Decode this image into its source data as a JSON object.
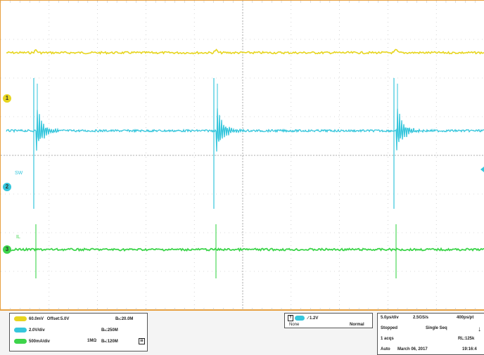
{
  "colors": {
    "ch1": "#e7d51f",
    "ch2": "#35c6dc",
    "ch3": "#3dd44b",
    "grid": "#b8b8b8",
    "frame": "#e8a040"
  },
  "markers": {
    "ch1": "1",
    "ch2": "2",
    "ch3": "3"
  },
  "trace_labels": {
    "ch2": "SW",
    "ch3": "IL"
  },
  "channels": [
    {
      "scale": "60.0mV",
      "offset": "Offset:5.0V",
      "bw": "Bₙ:20.0M",
      "coupling": ""
    },
    {
      "scale": "2.0V/div",
      "offset": "",
      "bw": "Bₙ:250M",
      "coupling": ""
    },
    {
      "scale": "500mA/div",
      "offset": "",
      "bw": "Bₙ:120M",
      "coupling": "1MΩ"
    }
  ],
  "trigger": {
    "level": "1.2V",
    "type": "None",
    "mode": "Normal"
  },
  "acquisition": {
    "timebase": "5.0μs/div",
    "sample_rate": "2.5GS/s",
    "resolution": "400ps/pt",
    "state": "Stopped",
    "seq_mode": "Single Seq",
    "acqs": "1 acqs",
    "record_length": "RL:125k",
    "auto": "Auto",
    "date": "March 06, 2017",
    "time": "19:16:4"
  }
}
